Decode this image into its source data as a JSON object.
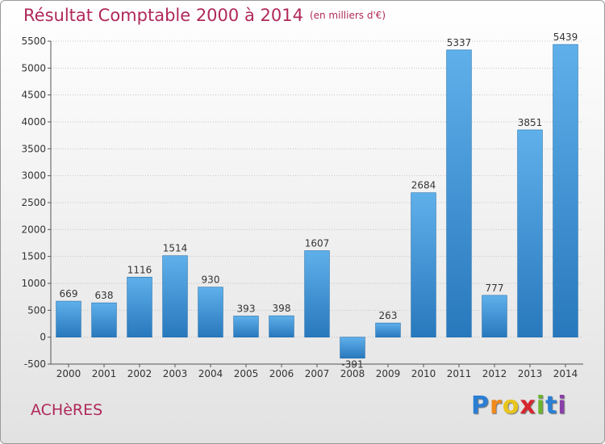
{
  "chart_data": {
    "type": "bar",
    "title": "Résultat Comptable 2000 à 2014",
    "subtitle": "(en milliers d'€)",
    "categories": [
      "2000",
      "2001",
      "2002",
      "2003",
      "2004",
      "2005",
      "2006",
      "2007",
      "2008",
      "2009",
      "2010",
      "2011",
      "2012",
      "2013",
      "2014"
    ],
    "values": [
      669,
      638,
      1116,
      1514,
      930,
      393,
      398,
      1607,
      -391,
      263,
      2684,
      5337,
      777,
      3851,
      5439
    ],
    "ylim": [
      -500,
      5500
    ],
    "yticks": [
      -500,
      0,
      500,
      1000,
      1500,
      2000,
      2500,
      3000,
      3500,
      4000,
      4500,
      5000,
      5500
    ],
    "grid": true,
    "bar_color": "#3a8fd6"
  },
  "commune": "ACHèRES",
  "logo": {
    "letters": [
      "P",
      "r",
      "o",
      "x",
      "i",
      "t",
      "i"
    ],
    "colors": [
      "#2a7fd4",
      "#f08a1c",
      "#e8c51a",
      "#d7262e",
      "#6cb52d",
      "#2a7fd4",
      "#8a3fa8"
    ]
  }
}
